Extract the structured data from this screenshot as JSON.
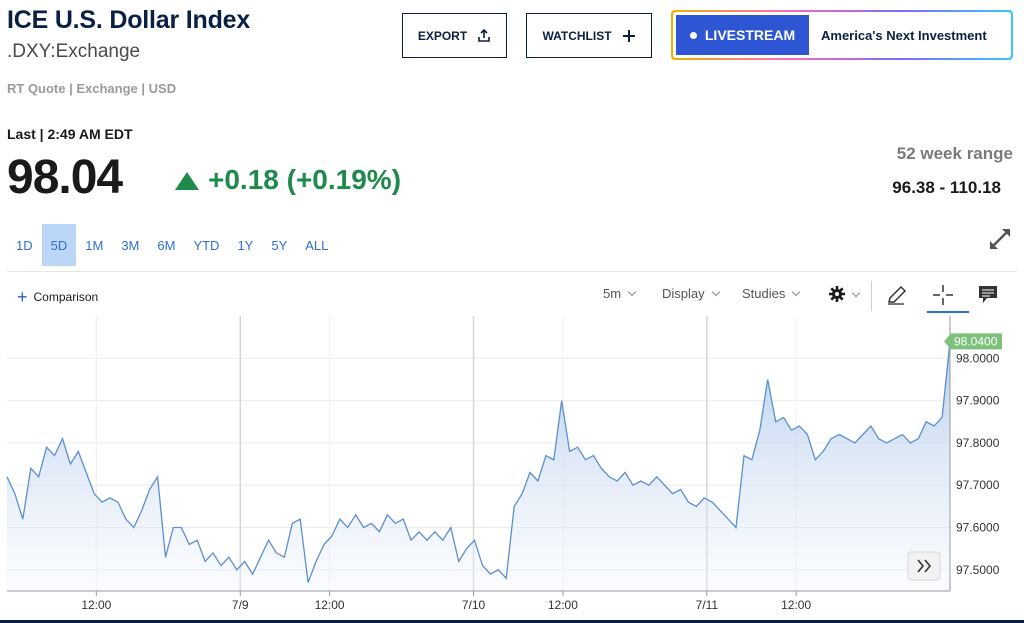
{
  "header": {
    "title": "ICE U.S. Dollar Index",
    "symbol": ".DXY:Exchange",
    "meta": "RT Quote | Exchange | USD"
  },
  "actions": {
    "export_label": "EXPORT",
    "watchlist_label": "WATCHLIST",
    "livestream_label": "LIVESTREAM",
    "promo_text": "America's Next Investment"
  },
  "quote": {
    "last_label": "Last | 2:49 AM EDT",
    "price": "98.04",
    "change": "+0.18 (+0.19%)",
    "range_label": "52 week range",
    "range_value": "96.38 - 110.18",
    "up_color": "#1e8a4c"
  },
  "periods": [
    "1D",
    "5D",
    "1M",
    "3M",
    "6M",
    "YTD",
    "1Y",
    "5Y",
    "ALL"
  ],
  "active_period": "5D",
  "toolbar": {
    "comparison_label": "Comparison",
    "interval_label": "5m",
    "display_label": "Display",
    "studies_label": "Studies"
  },
  "icons": [
    "upload-icon",
    "plus-icon",
    "expand-icon",
    "gear-icon",
    "pencil-icon",
    "crosshair-icon",
    "comment-icon",
    "forward-icon"
  ],
  "chart_data": {
    "type": "area",
    "x_labels": [
      "12:00",
      "7/9",
      "12:00",
      "7/10",
      "12:00",
      "7/11",
      "12:00"
    ],
    "y_ticks": [
      "98.0000",
      "97.9000",
      "97.8000",
      "97.7000",
      "97.6000",
      "97.5000"
    ],
    "ylim": [
      97.45,
      98.1
    ],
    "current_value_label": "98.0400",
    "current_value": 98.04,
    "line_color": "#5b8fd1",
    "marker_color": "#7cc27a",
    "values": [
      97.72,
      97.68,
      97.62,
      97.74,
      97.72,
      97.79,
      97.77,
      97.81,
      97.75,
      97.78,
      97.73,
      97.68,
      97.66,
      97.67,
      97.66,
      97.62,
      97.6,
      97.64,
      97.69,
      97.72,
      97.53,
      97.6,
      97.6,
      97.56,
      97.57,
      97.52,
      97.54,
      97.51,
      97.53,
      97.5,
      97.52,
      97.49,
      97.53,
      97.57,
      97.54,
      97.53,
      97.61,
      97.62,
      97.47,
      97.52,
      97.56,
      97.58,
      97.62,
      97.6,
      97.63,
      97.6,
      97.61,
      97.59,
      97.63,
      97.61,
      97.62,
      97.57,
      97.59,
      97.57,
      97.59,
      97.57,
      97.6,
      97.52,
      97.55,
      97.57,
      97.51,
      97.49,
      97.5,
      97.48,
      97.65,
      97.68,
      97.73,
      97.71,
      97.77,
      97.76,
      97.9,
      97.78,
      97.79,
      97.76,
      97.77,
      97.74,
      97.72,
      97.71,
      97.73,
      97.7,
      97.71,
      97.7,
      97.72,
      97.7,
      97.68,
      97.69,
      97.66,
      97.65,
      97.67,
      97.66,
      97.64,
      97.62,
      97.6,
      97.77,
      97.76,
      97.83,
      97.95,
      97.85,
      97.86,
      97.83,
      97.84,
      97.82,
      97.76,
      97.78,
      97.81,
      97.82,
      97.81,
      97.8,
      97.82,
      97.84,
      97.81,
      97.8,
      97.81,
      97.82,
      97.8,
      97.81,
      97.85,
      97.84,
      97.86,
      98.04
    ]
  }
}
